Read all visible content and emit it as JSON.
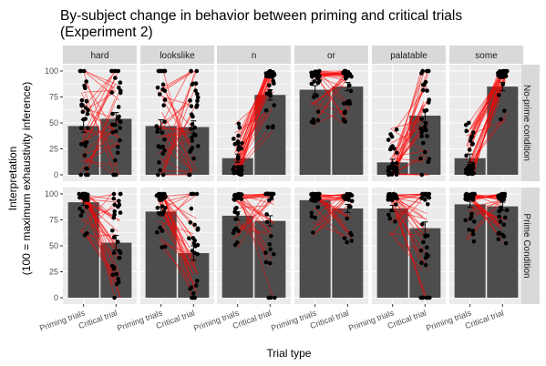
{
  "chart_data": {
    "type": "bar",
    "title": "By-subject change in behavior between priming and critical trials",
    "subtitle": "(Experiment 2)",
    "xlabel": "Trial type",
    "ylabel_line1": "Interpretation",
    "ylabel_line2": "(100 = maximum exhaustivity inference)",
    "x_categories": [
      "Priming trials",
      "Critical trial"
    ],
    "y_ticks": [
      "0",
      "25",
      "50",
      "75",
      "100"
    ],
    "ylim": [
      0,
      100
    ],
    "grid": true,
    "facet_columns": [
      "hard",
      "lookslike",
      "n",
      "or",
      "palatable",
      "some"
    ],
    "facet_rows": [
      "No-prime condition",
      "Prime Condition"
    ],
    "colors": {
      "panel_bg": "#ebebeb",
      "grid": "#ffffff",
      "strip_bg": "#d9d9d9",
      "bar": "#4d4d4d",
      "line": "#ff0000",
      "point": "#000000"
    },
    "panels": [
      {
        "row": 0,
        "col": 0,
        "column": "hard",
        "condition": "No-prime condition",
        "priming_mean": 47,
        "critical_mean": 54,
        "priming_err": 6,
        "critical_err": 6
      },
      {
        "row": 0,
        "col": 1,
        "column": "lookslike",
        "condition": "No-prime condition",
        "priming_mean": 47,
        "critical_mean": 46,
        "priming_err": 6,
        "critical_err": 6
      },
      {
        "row": 0,
        "col": 2,
        "column": "n",
        "condition": "No-prime condition",
        "priming_mean": 16,
        "critical_mean": 77,
        "priming_err": 4,
        "critical_err": 5
      },
      {
        "row": 0,
        "col": 3,
        "column": "or",
        "condition": "No-prime condition",
        "priming_mean": 82,
        "critical_mean": 85,
        "priming_err": 4,
        "critical_err": 4
      },
      {
        "row": 0,
        "col": 4,
        "column": "palatable",
        "condition": "No-prime condition",
        "priming_mean": 12,
        "critical_mean": 57,
        "priming_err": 3,
        "critical_err": 6
      },
      {
        "row": 0,
        "col": 5,
        "column": "some",
        "condition": "No-prime condition",
        "priming_mean": 16,
        "critical_mean": 85,
        "priming_err": 4,
        "critical_err": 4
      },
      {
        "row": 1,
        "col": 0,
        "column": "hard",
        "condition": "Prime Condition",
        "priming_mean": 92,
        "critical_mean": 53,
        "priming_err": 3,
        "critical_err": 7
      },
      {
        "row": 1,
        "col": 1,
        "column": "lookslike",
        "condition": "Prime Condition",
        "priming_mean": 83,
        "critical_mean": 43,
        "priming_err": 4,
        "critical_err": 7
      },
      {
        "row": 1,
        "col": 2,
        "column": "n",
        "condition": "Prime Condition",
        "priming_mean": 79,
        "critical_mean": 74,
        "priming_err": 4,
        "critical_err": 5
      },
      {
        "row": 1,
        "col": 3,
        "column": "or",
        "condition": "Prime Condition",
        "priming_mean": 94,
        "critical_mean": 86,
        "priming_err": 2,
        "critical_err": 4
      },
      {
        "row": 1,
        "col": 4,
        "column": "palatable",
        "condition": "Prime Condition",
        "priming_mean": 86,
        "critical_mean": 67,
        "priming_err": 3,
        "critical_err": 6
      },
      {
        "row": 1,
        "col": 5,
        "column": "some",
        "condition": "Prime Condition",
        "priming_mean": 90,
        "critical_mean": 88,
        "priming_err": 3,
        "critical_err": 4
      }
    ]
  }
}
